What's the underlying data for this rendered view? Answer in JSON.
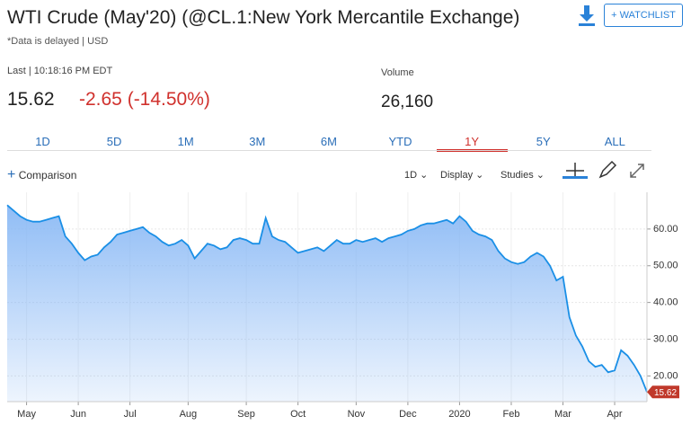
{
  "header": {
    "title": "WTI Crude (May'20) (@CL.1:New York Mercantile Exchange)",
    "subtitle": "*Data is delayed | USD",
    "watchlist": "+ WATCHLIST"
  },
  "quote": {
    "last_label": "Last | 10:18:16 PM EDT",
    "last": "15.62",
    "change": "-2.65 (-14.50%)",
    "volume_label": "Volume",
    "volume": "26,160"
  },
  "tabs": {
    "items": [
      "1D",
      "5D",
      "1M",
      "3M",
      "6M",
      "YTD",
      "1Y",
      "5Y",
      "ALL"
    ],
    "active": "1Y"
  },
  "toolbar": {
    "comparison": "Comparison",
    "interval": "1D",
    "display": "Display",
    "studies": "Studies"
  },
  "chart_data": {
    "type": "area",
    "color": "#1a8fe6",
    "fill": "#8ab9f5",
    "grid": true,
    "categories": [
      null,
      null,
      null,
      "May",
      null,
      null,
      null,
      null,
      null,
      null,
      null,
      "Jun",
      null,
      null,
      null,
      null,
      null,
      null,
      null,
      "Jul",
      null,
      null,
      null,
      null,
      null,
      null,
      null,
      null,
      "Aug",
      null,
      null,
      null,
      null,
      null,
      null,
      null,
      null,
      "Sep",
      null,
      null,
      null,
      null,
      null,
      null,
      null,
      "Oct",
      null,
      null,
      null,
      null,
      null,
      null,
      null,
      null,
      "Nov",
      null,
      null,
      null,
      null,
      null,
      null,
      null,
      "Dec",
      null,
      null,
      null,
      null,
      null,
      null,
      null,
      "2020",
      null,
      null,
      null,
      null,
      null,
      null,
      null,
      "Feb",
      null,
      null,
      null,
      null,
      null,
      null,
      null,
      "Mar",
      null,
      null,
      null,
      null,
      null,
      null,
      null,
      "Apr",
      null,
      null,
      null,
      null,
      null
    ],
    "values": [
      66.5,
      65,
      63.5,
      62.5,
      62,
      62,
      62.5,
      63,
      63.5,
      58,
      56,
      53.5,
      51.5,
      52.5,
      53,
      55,
      56.5,
      58.5,
      59,
      59.5,
      60,
      60.5,
      59,
      58,
      56.5,
      55.5,
      56,
      57,
      55.5,
      52,
      54,
      56,
      55.5,
      54.5,
      55,
      57,
      57.5,
      57,
      56,
      56,
      63,
      58,
      57,
      56.5,
      55,
      53.5,
      54,
      54.5,
      55,
      54,
      55.5,
      57,
      56,
      56,
      57,
      56.5,
      57,
      57.5,
      56.5,
      57.5,
      58,
      58.5,
      59.5,
      60,
      61,
      61.5,
      61.5,
      62,
      62.5,
      61.5,
      63.5,
      62,
      59.5,
      58.5,
      58,
      57,
      54,
      52,
      51,
      50.5,
      51,
      52.5,
      53.5,
      52.5,
      50,
      46,
      47,
      36,
      31,
      28,
      24,
      22.5,
      23,
      21,
      21.5,
      27,
      25.5,
      23,
      20,
      15.62
    ],
    "ylim": [
      13,
      70
    ],
    "yticks": [
      {
        "value": 20,
        "label": "20.00"
      },
      {
        "value": 30,
        "label": "30.00"
      },
      {
        "value": 40,
        "label": "40.00"
      },
      {
        "value": 50,
        "label": "50.00"
      },
      {
        "value": 60,
        "label": "60.00"
      }
    ]
  }
}
